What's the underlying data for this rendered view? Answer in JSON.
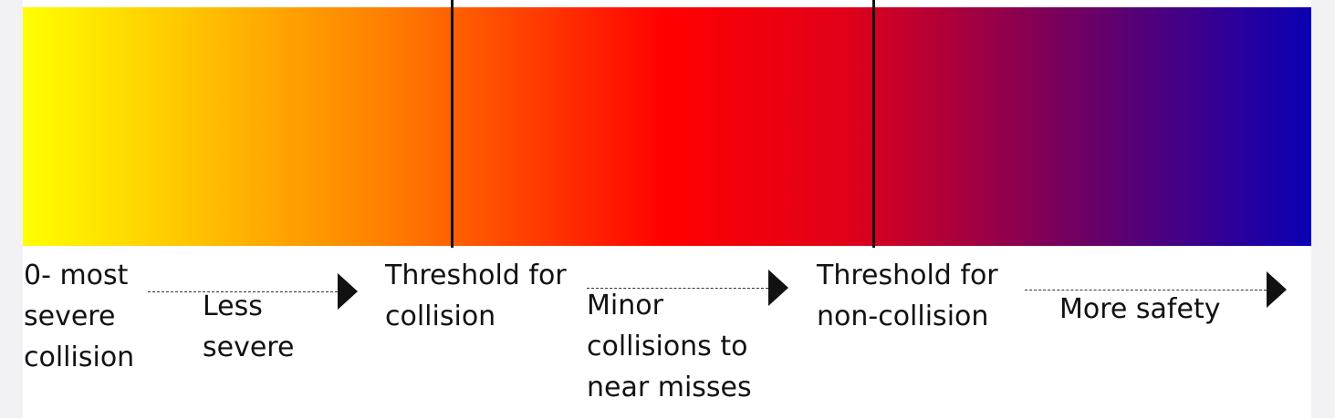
{
  "scale": {
    "gradient_colors": [
      "#ffff00",
      "#ff8000",
      "#ff0000",
      "#e0001a",
      "#7a005a",
      "#0a00b4"
    ],
    "threshold_line_color": "#111111"
  },
  "labels": {
    "severe_start": "0- most\nsevere\ncollision",
    "less_severe": "Less\nsevere",
    "threshold_collision": "Threshold for\ncollision",
    "minor_collisions": "Minor\ncollisions to\nnear misses",
    "threshold_non_collision": "Threshold for\nnon-collision",
    "more_safety": "More safety"
  }
}
